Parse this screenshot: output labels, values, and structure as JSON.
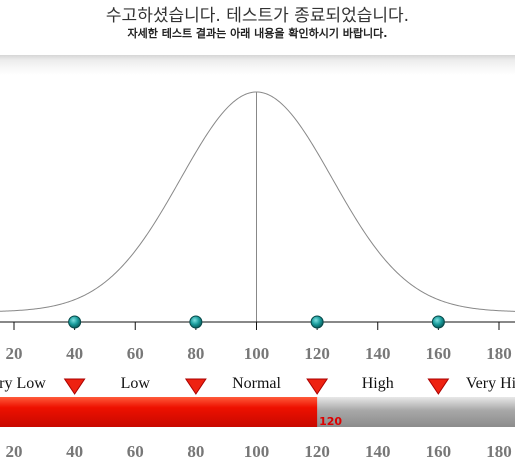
{
  "header": {
    "title": "수고하셨습니다. 테스트가 종료되었습니다.",
    "subtitle": "자세한 테스트 결과는 아래 내용을 확인하시기 바랍니다."
  },
  "chart_data": {
    "type": "line",
    "title": "",
    "xlabel": "",
    "ylabel": "",
    "curve": {
      "mean": 100,
      "sd": 25
    },
    "xlim": [
      14,
      186
    ],
    "ticks": [
      20,
      40,
      60,
      80,
      100,
      120,
      140,
      160,
      180
    ],
    "markers": [
      40,
      80,
      120,
      160
    ],
    "ranges": [
      {
        "label": "Very Low",
        "center": 20
      },
      {
        "label": "Low",
        "center": 60
      },
      {
        "label": "Normal",
        "center": 100
      },
      {
        "label": "High",
        "center": 140
      },
      {
        "label": "Very High",
        "center": 180
      }
    ],
    "score": {
      "value": 120,
      "label": "120"
    },
    "grid": false,
    "legend": "none"
  },
  "colors": {
    "curve": "#888888",
    "axis": "#111111",
    "marker_fill": "#1a9c9c",
    "triangle": "#ee2211",
    "bar_fill": "#ee1100",
    "bar_track": "#a8a8a8",
    "score_text": "#dd0000"
  }
}
